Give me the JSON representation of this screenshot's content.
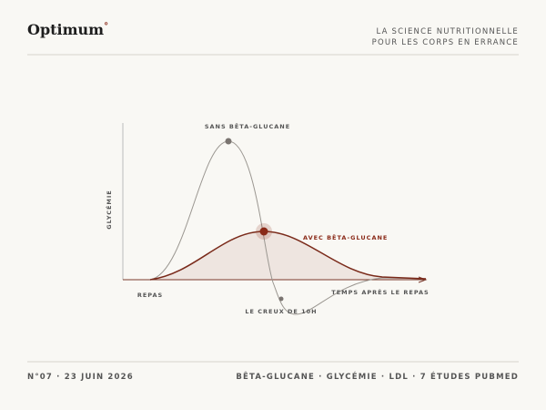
{
  "header": {
    "brand": "Optimum",
    "brand_mark": "°",
    "tagline": [
      "LA SCIENCE NUTRITIONNELLE",
      "POUR LES CORPS EN ERRANCE"
    ]
  },
  "diagram": {
    "y_axis_label": "GLYCÉMIE",
    "x_start_label": "REPAS",
    "x_axis_label": "TEMPS APRÈS LE REPAS",
    "curve_without": "SANS BÊTA-GLUCANE",
    "curve_with": "AVEC BÊTA-GLUCANE",
    "dip_label": "LE CREUX DE 10H"
  },
  "footer": {
    "issue": "N°07 · 23 JUIN 2026",
    "topics": "BÊTA-GLUCANE · GLYCÉMIE · LDL · 7 ÉTUDES PUBMED"
  }
}
